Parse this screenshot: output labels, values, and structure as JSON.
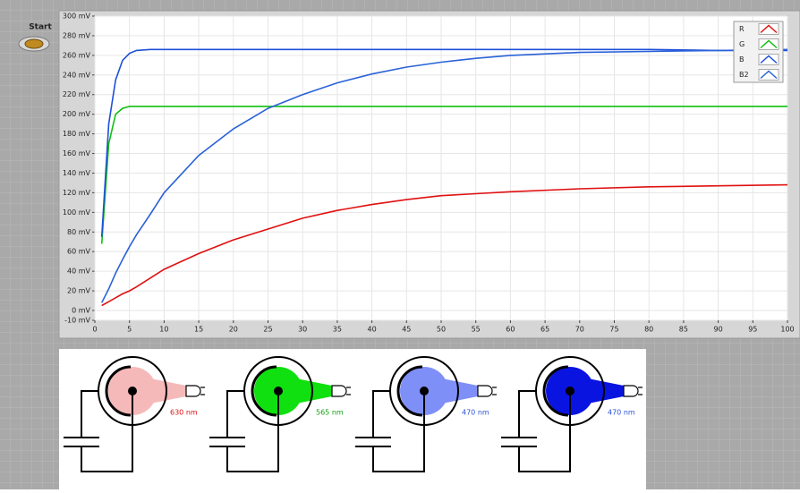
{
  "start_button": {
    "label": "Start"
  },
  "chart_data": {
    "type": "line",
    "x": [
      1,
      2,
      3,
      4,
      5,
      6,
      8,
      10,
      15,
      20,
      25,
      30,
      35,
      40,
      45,
      50,
      55,
      60,
      70,
      80,
      90,
      100
    ],
    "series": [
      {
        "name": "R",
        "color": "#e01010",
        "values": [
          5,
          9,
          13,
          17,
          20,
          24,
          33,
          42,
          58,
          72,
          83,
          94,
          102,
          108,
          113,
          117,
          119,
          121,
          124,
          126,
          127,
          128
        ]
      },
      {
        "name": "G",
        "color": "#10c010",
        "values": [
          68,
          170,
          200,
          206,
          208,
          208,
          208,
          208,
          208,
          208,
          208,
          208,
          208,
          208,
          208,
          208,
          208,
          208,
          208,
          208,
          208,
          208
        ]
      },
      {
        "name": "B",
        "color": "#1e4fd8",
        "values": [
          75,
          190,
          235,
          255,
          262,
          265,
          266,
          266,
          266,
          266,
          266,
          266,
          266,
          266,
          266,
          266,
          266,
          266,
          266,
          266,
          265,
          265
        ]
      },
      {
        "name": "B2",
        "color": "#2a62d8",
        "values": [
          8,
          22,
          38,
          52,
          65,
          77,
          98,
          120,
          158,
          185,
          206,
          220,
          232,
          241,
          248,
          253,
          257,
          260,
          263,
          264,
          265,
          266
        ]
      }
    ],
    "xlim": [
      0,
      100
    ],
    "xticks": [
      0,
      5,
      10,
      15,
      20,
      25,
      30,
      35,
      40,
      45,
      50,
      55,
      60,
      65,
      70,
      75,
      80,
      85,
      90,
      95,
      100
    ],
    "ylim": [
      -10,
      300
    ],
    "yticks": [
      {
        "value": -10,
        "label": "-10 mV"
      },
      {
        "value": 0,
        "label": "0 mV"
      },
      {
        "value": 20,
        "label": "20 mV"
      },
      {
        "value": 40,
        "label": "40 mV"
      },
      {
        "value": 60,
        "label": "60 mV"
      },
      {
        "value": 80,
        "label": "80 mV"
      },
      {
        "value": 100,
        "label": "100 mV"
      },
      {
        "value": 120,
        "label": "120 mV"
      },
      {
        "value": 140,
        "label": "140 mV"
      },
      {
        "value": 160,
        "label": "160 mV"
      },
      {
        "value": 180,
        "label": "180 mV"
      },
      {
        "value": 200,
        "label": "200 mV"
      },
      {
        "value": 220,
        "label": "220 mV"
      },
      {
        "value": 240,
        "label": "240 mV"
      },
      {
        "value": 260,
        "label": "260 mV"
      },
      {
        "value": 280,
        "label": "280 mV"
      },
      {
        "value": 300,
        "label": "300 mV"
      }
    ],
    "grid": true,
    "legend": "upper right"
  },
  "diagrams": [
    {
      "wavelength": "630 nm"
    },
    {
      "wavelength": "565 nm"
    },
    {
      "wavelength": "470 nm"
    },
    {
      "wavelength": "470 nm"
    }
  ]
}
